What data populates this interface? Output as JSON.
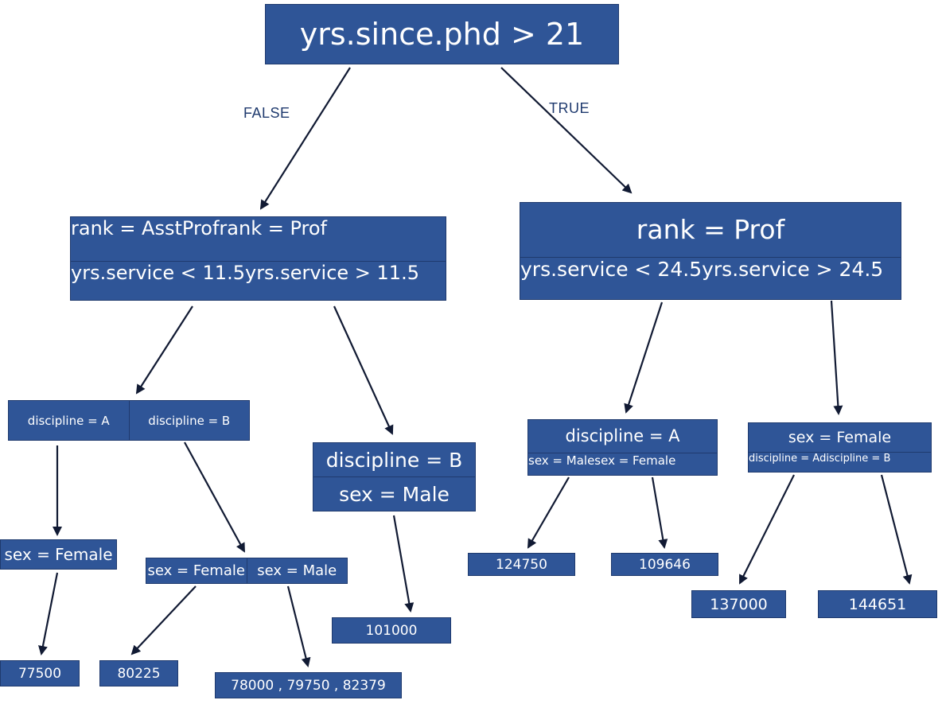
{
  "root": {
    "label": "yrs.since.phd > 21"
  },
  "edges": {
    "false_label": "FALSE",
    "true_label": "TRUE"
  },
  "left": {
    "top_left": "rank = AsstProf",
    "top_right": "rank = Prof",
    "bottom_left": "yrs.service < 11.5",
    "bottom_right": "yrs.service > 11.5"
  },
  "right": {
    "top": "rank = Prof",
    "bottom_left": "yrs.service < 24.5",
    "bottom_right": "yrs.service > 24.5"
  },
  "ll": {
    "left": "discipline = A",
    "right": "discipline = B"
  },
  "lr": {
    "top": "discipline = B",
    "bottom": "sex = Male"
  },
  "rl": {
    "top": "discipline = A",
    "bottom_left": "sex = Male",
    "bottom_right": "sex = Female"
  },
  "rr": {
    "top": "sex = Female",
    "bottom_left": "discipline = A",
    "bottom_right": "discipline = B"
  },
  "lll": {
    "label": "sex = Female"
  },
  "llr": {
    "left": "sex = Female",
    "right": "sex = Male"
  },
  "leaves": {
    "l1": "77500",
    "l2": "80225",
    "l3": "78000 , 79750 , 82379",
    "l4": "101000",
    "l5": "124750",
    "l6": "109646",
    "l7": "137000",
    "l8": "144651"
  }
}
